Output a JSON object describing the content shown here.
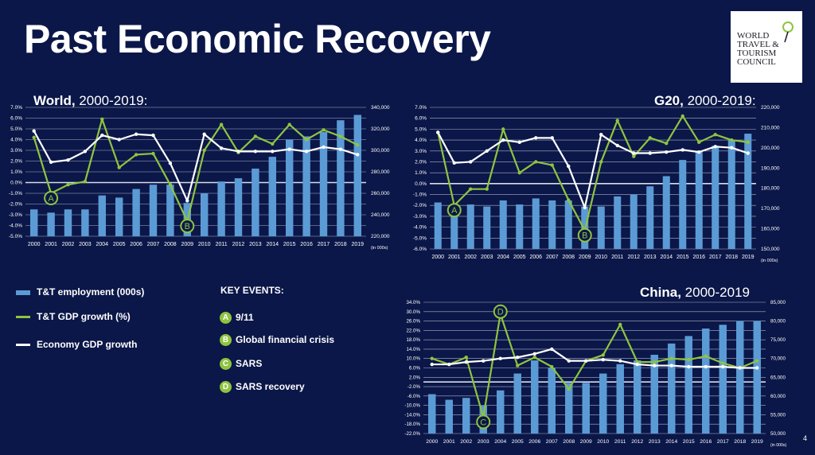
{
  "title": "Past Economic Recovery",
  "logo": {
    "text": [
      "WORLD",
      "TRAVEL &",
      "TOURISM",
      "COUNCIL"
    ]
  },
  "colors": {
    "bar": "#5b9bd5",
    "gdp_tt": "#8fc43f",
    "gdp_econ": "#ffffff",
    "background": "#0b1748"
  },
  "legend": [
    {
      "label": "T&T employment (000s)",
      "color": "#5b9bd5",
      "kind": "bar"
    },
    {
      "label": "T&T GDP growth (%)",
      "color": "#8fc43f",
      "kind": "line"
    },
    {
      "label": "Economy GDP growth",
      "color": "#ffffff",
      "kind": "line"
    }
  ],
  "key_events": {
    "title": "KEY EVENTS:",
    "items": [
      {
        "letter": "A",
        "label": "9/11"
      },
      {
        "letter": "B",
        "label": "Global financial crisis"
      },
      {
        "letter": "C",
        "label": "SARS"
      },
      {
        "letter": "D",
        "label": "SARS recovery"
      }
    ]
  },
  "page_number": "4",
  "chart_data": [
    {
      "type": "bar",
      "title_bold": "World,",
      "title_rest": " 2000-2019:",
      "categories": [
        "2000",
        "2001",
        "2002",
        "2003",
        "2004",
        "2005",
        "2006",
        "2007",
        "2008",
        "2009",
        "2010",
        "2011",
        "2012",
        "2013",
        "2014",
        "2015",
        "2016",
        "2017",
        "2018",
        "2019"
      ],
      "left_ticks": [
        "-5.0%",
        "-4.0%",
        "-3.0%",
        "-2.0%",
        "-1.0%",
        "0.0%",
        "1.0%",
        "2.0%",
        "3.0%",
        "4.0%",
        "5.0%",
        "6.0%",
        "7.0%"
      ],
      "right_ticks": [
        "220,000",
        "240,000",
        "260,000",
        "280,000",
        "300,000",
        "320,000",
        "340,000"
      ],
      "ylim_left": [
        -5,
        7
      ],
      "ylim_right": [
        220000,
        340000
      ],
      "right_unit": "(in 000s)",
      "series": [
        {
          "name": "T&T employment (000s)",
          "kind": "bar",
          "axis": "right",
          "values": [
            245000,
            242000,
            245000,
            245000,
            258000,
            256000,
            264000,
            268000,
            268000,
            251000,
            260000,
            271000,
            274000,
            283000,
            294000,
            310000,
            313000,
            317000,
            328000,
            333000
          ]
        },
        {
          "name": "T&T GDP growth (%)",
          "kind": "line",
          "axis": "left",
          "values": [
            4.2,
            -1.0,
            -0.2,
            0.1,
            5.9,
            1.4,
            2.6,
            2.7,
            -0.2,
            -3.6,
            3.0,
            5.4,
            2.8,
            4.3,
            3.6,
            5.4,
            4.0,
            4.9,
            4.3,
            3.5
          ]
        },
        {
          "name": "Economy GDP growth",
          "kind": "line",
          "axis": "left",
          "values": [
            4.8,
            1.9,
            2.1,
            2.9,
            4.4,
            4.0,
            4.5,
            4.4,
            1.8,
            -1.7,
            4.5,
            3.2,
            2.9,
            2.9,
            2.9,
            3.1,
            2.9,
            3.3,
            3.1,
            2.6
          ]
        }
      ],
      "annotations": [
        {
          "letter": "A",
          "x": "2001"
        },
        {
          "letter": "B",
          "x": "2009"
        }
      ]
    },
    {
      "type": "bar",
      "title_bold": "G20,",
      "title_rest": " 2000-2019:",
      "categories": [
        "2000",
        "2001",
        "2002",
        "2003",
        "2004",
        "2005",
        "2006",
        "2007",
        "2008",
        "2009",
        "2010",
        "2011",
        "2012",
        "2013",
        "2014",
        "2015",
        "2016",
        "2017",
        "2018",
        "2019"
      ],
      "left_ticks": [
        "-6.0%",
        "-5.0%",
        "-4.0%",
        "-3.0%",
        "-2.0%",
        "-1.0%",
        "0.0%",
        "1.0%",
        "2.0%",
        "3.0%",
        "4.0%",
        "5.0%",
        "6.0%",
        "7.0%"
      ],
      "right_ticks": [
        "150,000",
        "160,000",
        "170,000",
        "180,000",
        "190,000",
        "200,000",
        "210,000",
        "220,000"
      ],
      "ylim_left": [
        -6,
        7
      ],
      "ylim_right": [
        150000,
        220000
      ],
      "right_unit": "(in 000s)",
      "series": [
        {
          "name": "T&T employment (000s)",
          "kind": "bar",
          "axis": "right",
          "values": [
            173000,
            171000,
            172000,
            171000,
            174000,
            172000,
            175000,
            174000,
            174000,
            171000,
            171000,
            176000,
            177000,
            181000,
            186000,
            194000,
            198000,
            201000,
            204000,
            207000
          ]
        },
        {
          "name": "T&T GDP growth (%)",
          "kind": "line",
          "axis": "left",
          "values": [
            4.7,
            -2.0,
            -0.5,
            -0.5,
            5.0,
            1.0,
            2.0,
            1.7,
            -1.5,
            -4.3,
            2.0,
            5.8,
            2.5,
            4.2,
            3.7,
            6.2,
            3.8,
            4.5,
            4.0,
            3.8
          ]
        },
        {
          "name": "Economy GDP growth",
          "kind": "line",
          "axis": "left",
          "values": [
            4.7,
            1.9,
            2.0,
            3.0,
            4.0,
            3.8,
            4.2,
            4.2,
            1.6,
            -2.2,
            4.5,
            3.5,
            2.8,
            2.8,
            2.9,
            3.1,
            2.9,
            3.4,
            3.3,
            2.8
          ]
        }
      ],
      "annotations": [
        {
          "letter": "A",
          "x": "2001"
        },
        {
          "letter": "B",
          "x": "2009"
        }
      ]
    },
    {
      "type": "bar",
      "title_bold": "China,",
      "title_rest": " 2000-2019",
      "categories": [
        "2000",
        "2001",
        "2002",
        "2003",
        "2004",
        "2005",
        "2006",
        "2007",
        "2008",
        "2009",
        "2010",
        "2011",
        "2012",
        "2013",
        "2014",
        "2015",
        "2016",
        "2017",
        "2018",
        "2019"
      ],
      "left_ticks": [
        "-22.0%",
        "-18.0%",
        "-14.0%",
        "-10.0%",
        "-6.0%",
        "-2.0%",
        "2.0%",
        "6.0%",
        "10.0%",
        "14.0%",
        "18.0%",
        "22.0%",
        "26.0%",
        "30.0%",
        "34.0%"
      ],
      "right_ticks": [
        "50,000",
        "55,000",
        "60,000",
        "65,000",
        "70,000",
        "75,000",
        "80,000",
        "85,000"
      ],
      "ylim_left": [
        -22,
        34
      ],
      "ylim_right": [
        50000,
        85000
      ],
      "right_unit": "(in 000s)",
      "series": [
        {
          "name": "T&T employment (000s)",
          "kind": "bar",
          "axis": "right",
          "values": [
            60500,
            59000,
            59500,
            57500,
            61500,
            66000,
            69500,
            67500,
            63500,
            63500,
            66000,
            68500,
            69500,
            71000,
            74000,
            76000,
            78000,
            79000,
            80000,
            80000
          ]
        },
        {
          "name": "T&T GDP growth (%)",
          "kind": "line",
          "axis": "left",
          "values": [
            10.0,
            7.5,
            10.5,
            -15.0,
            29.0,
            7.0,
            10.5,
            6.5,
            -3.0,
            9.0,
            11.5,
            24.5,
            8.5,
            8.5,
            10.0,
            9.5,
            11.0,
            8.0,
            6.0,
            9.0
          ]
        },
        {
          "name": "Economy GDP growth",
          "kind": "line",
          "axis": "left",
          "values": [
            7.5,
            7.5,
            8.5,
            9.0,
            10.0,
            10.5,
            12.0,
            14.0,
            9.0,
            9.0,
            9.5,
            9.0,
            7.5,
            7.0,
            7.0,
            6.5,
            6.5,
            6.5,
            6.0,
            6.0
          ]
        }
      ],
      "annotations": [
        {
          "letter": "C",
          "x": "2003"
        },
        {
          "letter": "D",
          "x": "2004"
        }
      ]
    }
  ]
}
